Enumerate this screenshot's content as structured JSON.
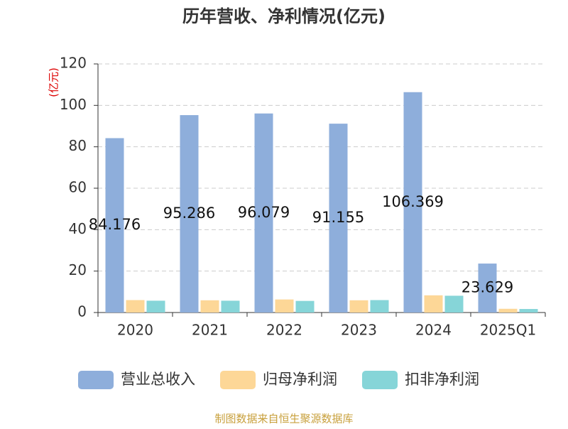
{
  "chart_data": {
    "type": "bar",
    "title": "历年营收、净利情况(亿元)",
    "y_label": "(亿元)",
    "categories": [
      "2020",
      "2021",
      "2022",
      "2023",
      "2024",
      "2025Q1"
    ],
    "series": [
      {
        "name": "营业总收入",
        "color": "#8eaedb",
        "values": [
          84.176,
          95.286,
          96.079,
          91.155,
          106.369,
          23.629
        ]
      },
      {
        "name": "归母净利润",
        "color": "#fdd797",
        "values": [
          6.0,
          5.9,
          6.3,
          5.9,
          8.3,
          1.8
        ]
      },
      {
        "name": "扣非净利润",
        "color": "#86d5d8",
        "values": [
          5.7,
          5.7,
          5.6,
          6.0,
          8.1,
          1.7
        ]
      }
    ],
    "ylim": [
      0,
      120
    ],
    "yticks": [
      0,
      20,
      40,
      60,
      80,
      100,
      120
    ],
    "grid": true,
    "source": "制图数据来自恒生聚源数据库"
  }
}
